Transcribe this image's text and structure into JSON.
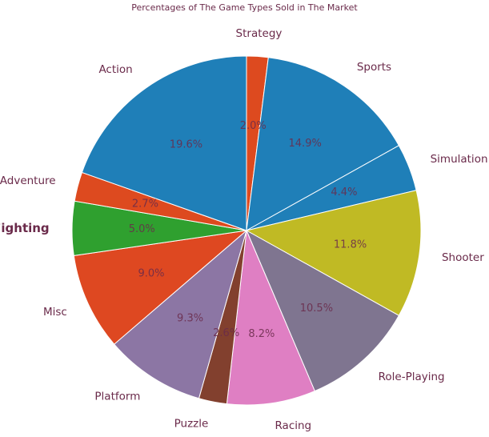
{
  "chart_data": {
    "type": "pie",
    "title": "Percentages of The Game Types Sold in The Market",
    "start_angle_deg": 90,
    "direction": "clockwise",
    "slices": [
      {
        "label": "Strategy",
        "value": 2.0,
        "pct_text": "2.0%",
        "color": "#dd4a1f"
      },
      {
        "label": "Sports",
        "value": 14.9,
        "pct_text": "14.9%",
        "color": "#1f7fb8"
      },
      {
        "label": "Simulation",
        "value": 4.4,
        "pct_text": "4.4%",
        "color": "#1f7fb8"
      },
      {
        "label": "Shooter",
        "value": 11.8,
        "pct_text": "11.8%",
        "color": "#c0ba24"
      },
      {
        "label": "Role-Playing",
        "value": 10.5,
        "pct_text": "10.5%",
        "color": "#7f7590"
      },
      {
        "label": "Racing",
        "value": 8.2,
        "pct_text": "8.2%",
        "color": "#df7fc3"
      },
      {
        "label": "Puzzle",
        "value": 2.6,
        "pct_text": "2.6%",
        "color": "#82402e"
      },
      {
        "label": "Platform",
        "value": 9.3,
        "pct_text": "9.3%",
        "color": "#8c76a4"
      },
      {
        "label": "Misc",
        "value": 9.0,
        "pct_text": "9.0%",
        "color": "#de4821"
      },
      {
        "label": "Fighting",
        "value": 5.0,
        "pct_text": "5.0%",
        "color": "#2fa02f",
        "label_bold": true
      },
      {
        "label": "Adventure",
        "value": 2.7,
        "pct_text": "2.7%",
        "color": "#dd4a1f"
      },
      {
        "label": "Action",
        "value": 19.6,
        "pct_text": "19.6%",
        "color": "#1f7fb8"
      }
    ]
  }
}
